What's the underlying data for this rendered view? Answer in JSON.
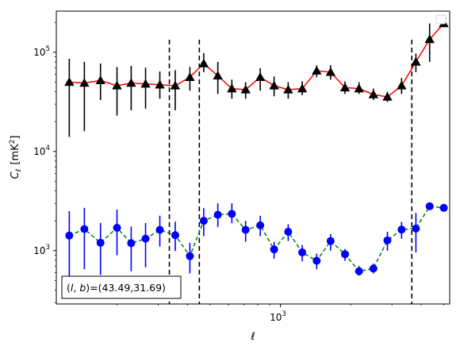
{
  "chart_data": {
    "type": "scatter",
    "title": "",
    "xlabel": "ℓ",
    "ylabel_main": "C",
    "ylabel_sub": "ℓ",
    "ylabel_units": "[mK",
    "ylabel_exp": "2",
    "ylabel_close": "]",
    "xscale": "log",
    "yscale": "log",
    "xlim": [
      110,
      5300
    ],
    "ylim": [
      290,
      260000
    ],
    "x_major_ticks": [
      {
        "value": 1000,
        "base": "10",
        "exp": "3"
      }
    ],
    "y_major_ticks": [
      {
        "value": 1000,
        "base": "10",
        "exp": "3"
      },
      {
        "value": 10000,
        "base": "10",
        "exp": "4"
      },
      {
        "value": 100000,
        "base": "10",
        "exp": "5"
      }
    ],
    "grid": false,
    "legend": {
      "location": "top-right",
      "entries": []
    },
    "annotation": {
      "location": "bottom-left",
      "text": "(l, b)=(43.49,31.69)",
      "lb_l": "l",
      "lb_b": "b",
      "values": "(43.49,31.69)"
    },
    "vlines": [
      335,
      450,
      3650
    ],
    "series": [
      {
        "line_color": "#ff0000",
        "marker_color": "#000000",
        "marker": "triangle",
        "line_style": "solid",
        "x": [
          125,
          145,
          170,
          200,
          230,
          265,
          305,
          355,
          410,
          470,
          540,
          620,
          710,
          820,
          940,
          1080,
          1240,
          1430,
          1640,
          1890,
          2170,
          2500,
          2870,
          3300,
          3800,
          4350,
          5000
        ],
        "y": [
          50000,
          49000,
          52000,
          46000,
          49000,
          48000,
          47000,
          46000,
          56000,
          77000,
          58000,
          43000,
          42000,
          56000,
          46000,
          42000,
          43000,
          65000,
          63000,
          44000,
          43000,
          37500,
          35500,
          46000,
          80000,
          135000,
          195000
        ],
        "y_lo": [
          14000,
          16000,
          33000,
          23000,
          26000,
          27000,
          34000,
          26000,
          41000,
          63000,
          38000,
          34000,
          34000,
          41000,
          36000,
          34000,
          37000,
          56000,
          53000,
          38000,
          38000,
          33000,
          31500,
          38000,
          63000,
          80000,
          0
        ],
        "y_hi": [
          86000,
          80000,
          77000,
          71000,
          73000,
          70000,
          64000,
          66000,
          71000,
          98000,
          80000,
          53000,
          50000,
          69000,
          57000,
          50000,
          51000,
          74000,
          74000,
          51000,
          50000,
          43000,
          40000,
          55000,
          97000,
          195000,
          0
        ]
      },
      {
        "line_color": "#008000",
        "marker_color": "#0000ff",
        "marker": "circle",
        "line_style": "dashed",
        "x": [
          125,
          145,
          170,
          200,
          230,
          265,
          305,
          355,
          410,
          470,
          540,
          620,
          710,
          820,
          940,
          1080,
          1240,
          1430,
          1640,
          1890,
          2170,
          2500,
          2870,
          3300,
          3800,
          4350,
          5000
        ],
        "y": [
          1420,
          1650,
          1200,
          1700,
          1190,
          1320,
          1620,
          1430,
          880,
          2000,
          2300,
          2350,
          1620,
          1800,
          1030,
          1550,
          960,
          790,
          1250,
          920,
          620,
          660,
          1270,
          1630,
          1670,
          2800,
          2700
        ],
        "y_lo": [
          530,
          650,
          570,
          900,
          620,
          680,
          1100,
          990,
          590,
          1400,
          1730,
          1890,
          1230,
          1400,
          830,
          1250,
          780,
          650,
          1000,
          790,
          560,
          590,
          1000,
          1320,
          960,
          0,
          0
        ],
        "y_hi": [
          2500,
          2700,
          1900,
          2600,
          1750,
          1900,
          2250,
          1960,
          1200,
          2680,
          3000,
          3000,
          2000,
          2250,
          1230,
          1850,
          1140,
          930,
          1470,
          1040,
          700,
          740,
          1550,
          1950,
          2400,
          0,
          0
        ]
      }
    ]
  }
}
